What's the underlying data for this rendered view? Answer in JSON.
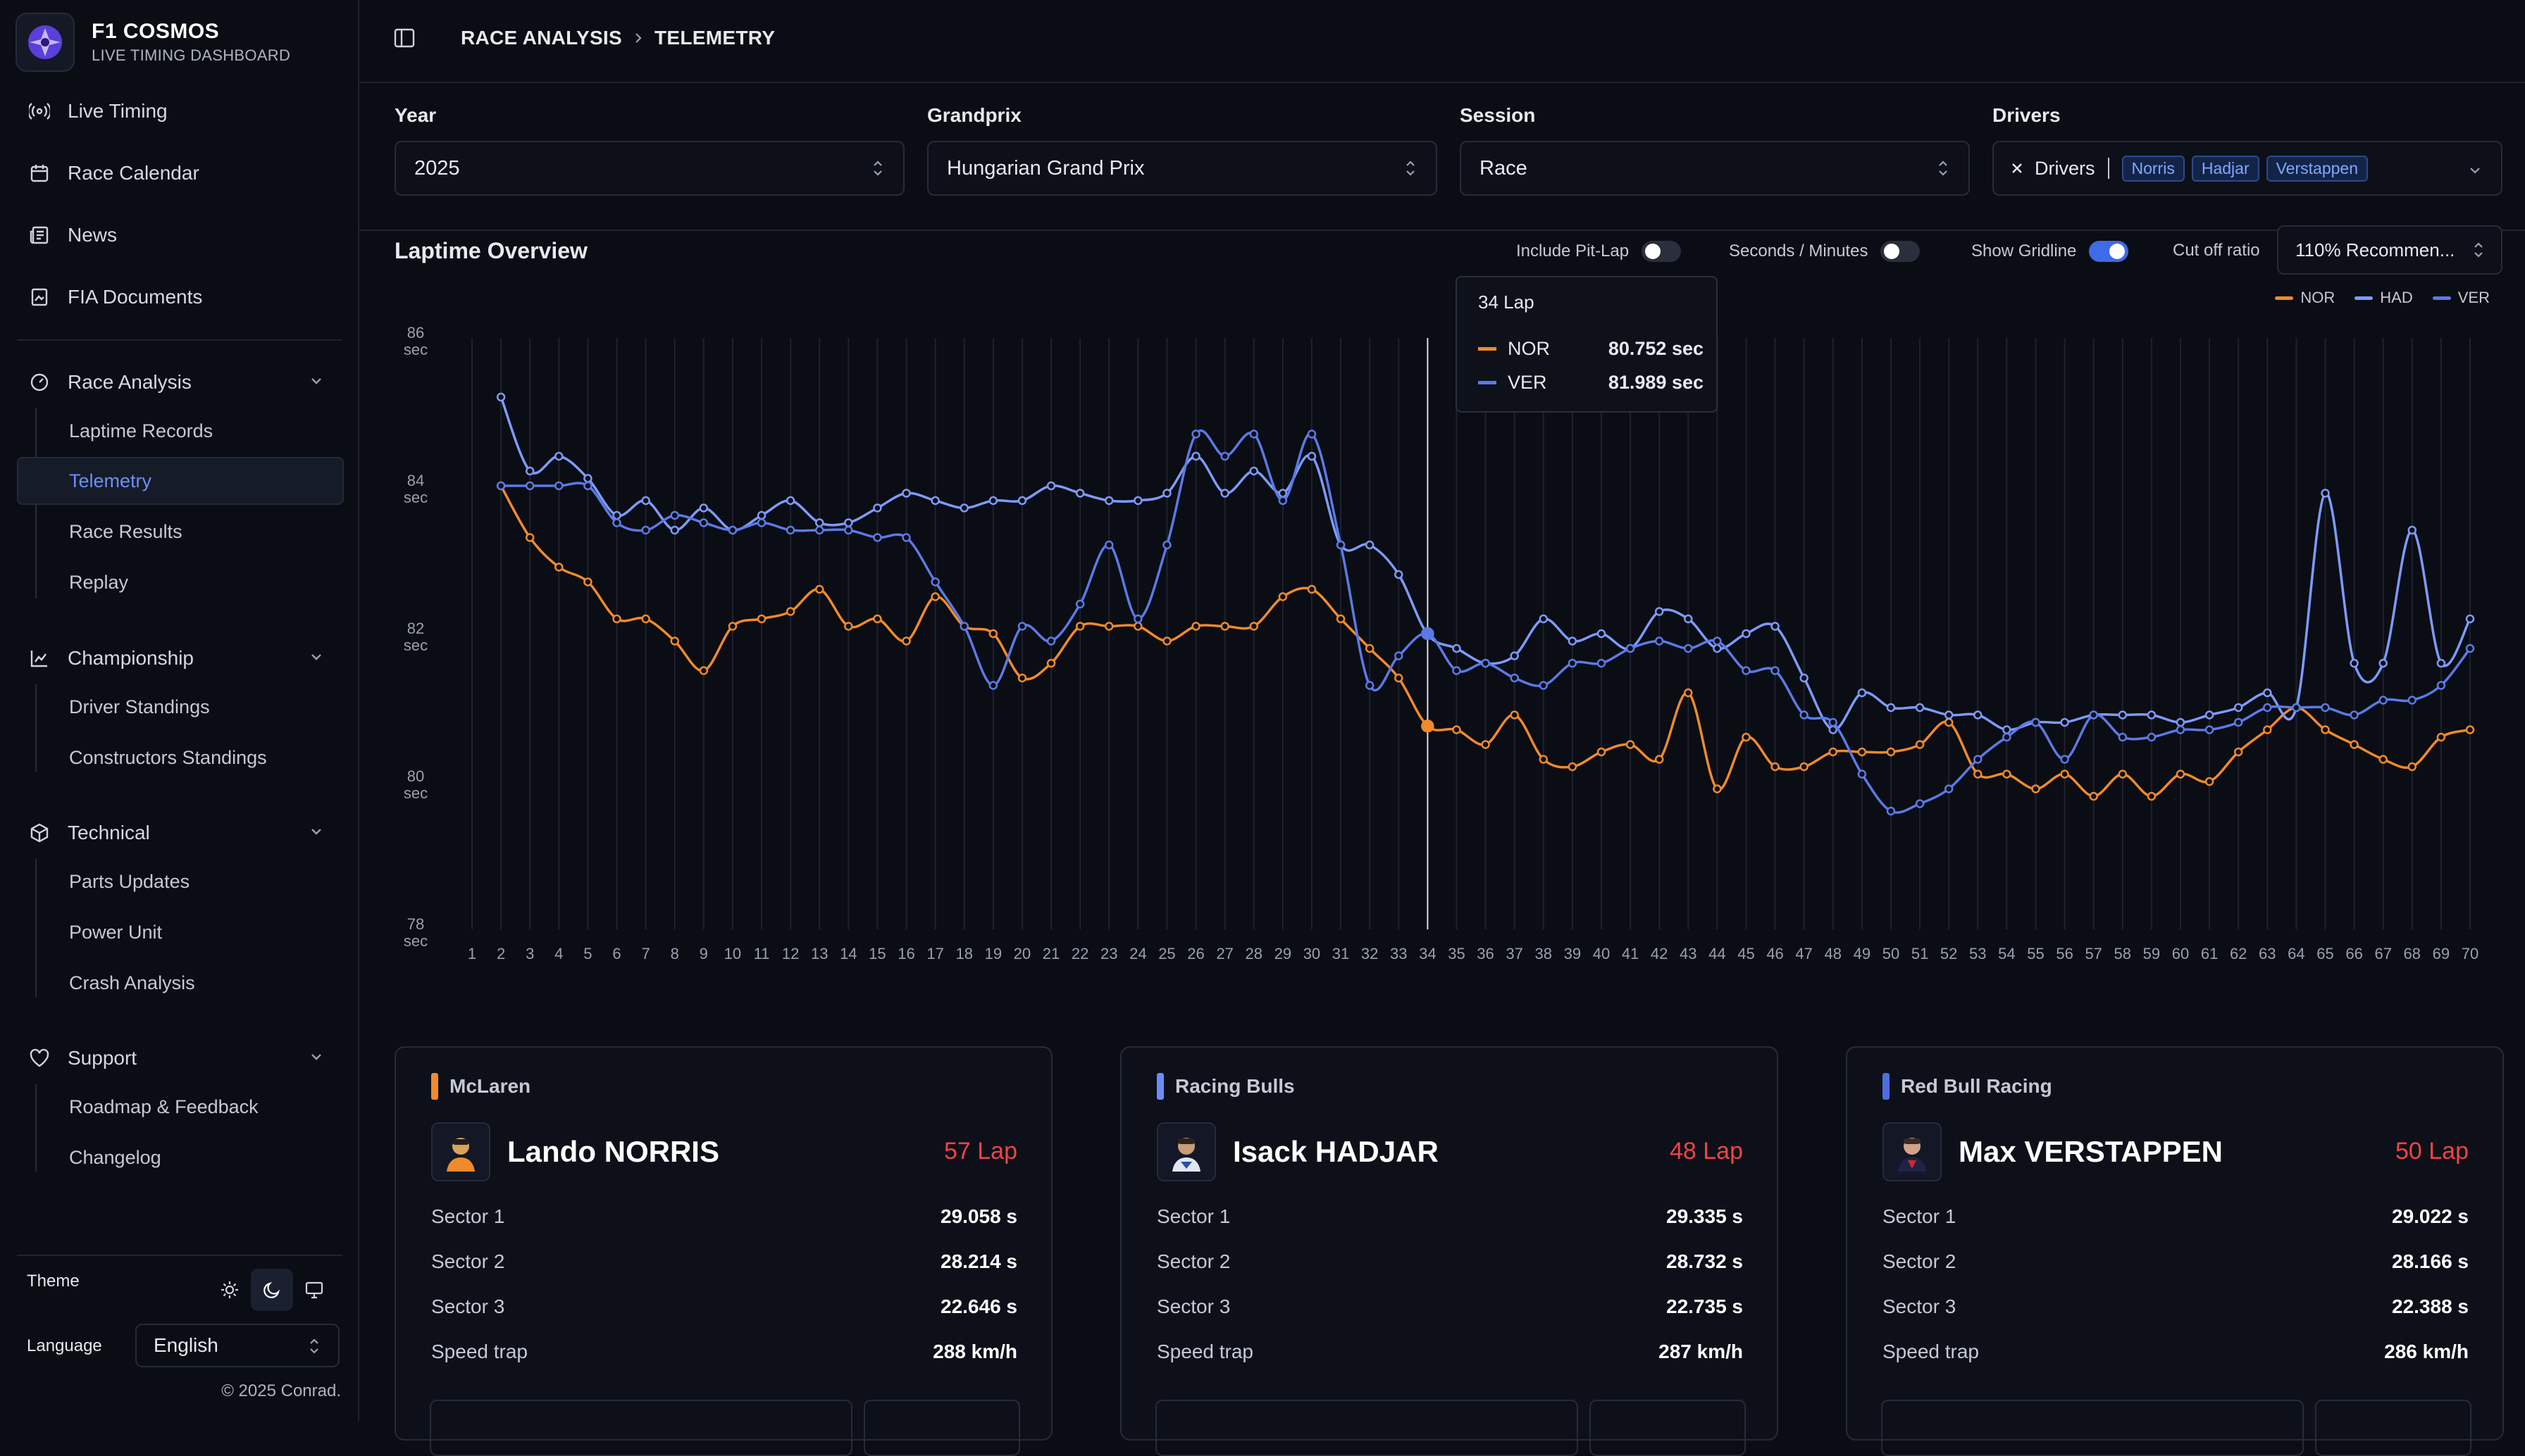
{
  "app": {
    "name": "F1 COSMOS",
    "subtitle": "LIVE TIMING DASHBOARD"
  },
  "sidebar": {
    "top_items": [
      {
        "label": "Live Timing",
        "icon": "broadcast-icon"
      },
      {
        "label": "Race Calendar",
        "icon": "calendar-icon"
      },
      {
        "label": "News",
        "icon": "newspaper-icon"
      },
      {
        "label": "FIA Documents",
        "icon": "document-icon"
      }
    ],
    "groups": [
      {
        "label": "Race Analysis",
        "icon": "gauge-icon",
        "items": [
          "Laptime Records",
          "Telemetry",
          "Race Results",
          "Replay"
        ]
      },
      {
        "label": "Championship",
        "icon": "chart-icon",
        "items": [
          "Driver Standings",
          "Constructors Standings"
        ]
      },
      {
        "label": "Technical",
        "icon": "package-icon",
        "items": [
          "Parts Updates",
          "Power Unit",
          "Crash Analysis"
        ]
      },
      {
        "label": "Support",
        "icon": "heart-icon",
        "items": [
          "Roadmap & Feedback",
          "Changelog"
        ]
      }
    ],
    "active_item": "Telemetry",
    "theme_label": "Theme",
    "language_label": "Language",
    "language_value": "English",
    "copyright": "© 2025 Conrad."
  },
  "breadcrumb": {
    "parent": "RACE ANALYSIS",
    "current": "TELEMETRY"
  },
  "filters": {
    "year": {
      "label": "Year",
      "value": "2025"
    },
    "grandprix": {
      "label": "Grandprix",
      "value": "Hungarian Grand Prix"
    },
    "session": {
      "label": "Session",
      "value": "Race"
    },
    "drivers": {
      "label": "Drivers",
      "value": "Drivers",
      "chips": [
        "Norris",
        "Hadjar",
        "Verstappen"
      ]
    }
  },
  "overview": {
    "title": "Laptime Overview",
    "include_pit_lap": {
      "label": "Include Pit-Lap",
      "on": false
    },
    "seconds_minutes": {
      "label": "Seconds / Minutes",
      "on": false
    },
    "show_gridline": {
      "label": "Show Gridline",
      "on": true
    },
    "cut_off": {
      "label": "Cut off ratio",
      "value": "110% Recommen..."
    }
  },
  "tooltip": {
    "title": "34 Lap",
    "rows": [
      {
        "name": "NOR",
        "value": "80.752 sec",
        "color": "#f08a2c"
      },
      {
        "name": "VER",
        "value": "81.989 sec",
        "color": "#5b7ae6"
      }
    ]
  },
  "chart_data": {
    "type": "line",
    "xlabel": "",
    "ylabel": "",
    "ylim": [
      78,
      86
    ],
    "yticks": [
      "86\nsec",
      "84\nsec",
      "82\nsec",
      "80\nsec",
      "78\nsec"
    ],
    "x": [
      1,
      2,
      3,
      4,
      5,
      6,
      7,
      8,
      9,
      10,
      11,
      12,
      13,
      14,
      15,
      16,
      17,
      18,
      19,
      20,
      21,
      22,
      23,
      24,
      25,
      26,
      27,
      28,
      29,
      30,
      31,
      32,
      33,
      34,
      35,
      36,
      37,
      38,
      39,
      40,
      41,
      42,
      43,
      44,
      45,
      46,
      47,
      48,
      49,
      50,
      51,
      52,
      53,
      54,
      55,
      56,
      57,
      58,
      59,
      60,
      61,
      62,
      63,
      64,
      65,
      66,
      67,
      68,
      69,
      70
    ],
    "grid": true,
    "legend": "top-right",
    "hover_lap": 34,
    "series": [
      {
        "name": "NOR",
        "color": "#f08a2c",
        "values": [
          null,
          84.0,
          83.3,
          82.9,
          82.7,
          82.2,
          82.2,
          81.9,
          81.5,
          82.1,
          82.2,
          82.3,
          82.6,
          82.1,
          82.2,
          81.9,
          82.5,
          82.1,
          82.0,
          81.4,
          81.6,
          82.1,
          82.1,
          82.1,
          81.9,
          82.1,
          82.1,
          82.1,
          82.5,
          82.6,
          82.2,
          81.8,
          81.4,
          80.75,
          80.7,
          80.5,
          80.9,
          80.3,
          80.2,
          80.4,
          80.5,
          80.3,
          81.2,
          79.9,
          80.6,
          80.2,
          80.2,
          80.4,
          80.4,
          80.4,
          80.5,
          80.8,
          80.1,
          80.1,
          79.9,
          80.1,
          79.8,
          80.1,
          79.8,
          80.1,
          80.0,
          80.4,
          80.7,
          81.0,
          80.7,
          80.5,
          80.3,
          80.2,
          80.6,
          80.7
        ]
      },
      {
        "name": "HAD",
        "color": "#7d9bff",
        "values": [
          null,
          85.2,
          84.2,
          84.4,
          84.1,
          83.6,
          83.8,
          83.4,
          83.7,
          83.4,
          83.6,
          83.8,
          83.5,
          83.5,
          83.7,
          83.9,
          83.8,
          83.7,
          83.8,
          83.8,
          84.0,
          83.9,
          83.8,
          83.8,
          83.9,
          84.4,
          83.9,
          84.2,
          83.9,
          84.4,
          83.2,
          83.2,
          82.8,
          81.99,
          81.8,
          81.6,
          81.7,
          82.2,
          81.9,
          82.0,
          81.8,
          82.3,
          82.2,
          81.8,
          82.0,
          82.1,
          81.4,
          80.7,
          81.2,
          81.0,
          81.0,
          80.9,
          80.9,
          80.7,
          80.8,
          80.8,
          80.9,
          80.9,
          80.9,
          80.8,
          80.9,
          81.0,
          81.2,
          81.0,
          83.9,
          81.6,
          81.6,
          83.4,
          81.6,
          82.2
        ]
      },
      {
        "name": "VER",
        "color": "#5b7ae6",
        "values": [
          null,
          84.0,
          84.0,
          84.0,
          84.0,
          83.5,
          83.4,
          83.6,
          83.5,
          83.4,
          83.5,
          83.4,
          83.4,
          83.4,
          83.3,
          83.3,
          82.7,
          82.1,
          81.3,
          82.1,
          81.9,
          82.4,
          83.2,
          82.2,
          83.2,
          84.7,
          84.4,
          84.7,
          83.8,
          84.7,
          83.2,
          81.3,
          81.7,
          82.0,
          81.5,
          81.6,
          81.4,
          81.3,
          81.6,
          81.6,
          81.8,
          81.9,
          81.8,
          81.9,
          81.5,
          81.5,
          80.9,
          80.8,
          80.1,
          79.6,
          79.7,
          79.9,
          80.3,
          80.6,
          80.8,
          80.3,
          80.9,
          80.6,
          80.6,
          80.7,
          80.7,
          80.8,
          81.0,
          81.0,
          81.0,
          80.9,
          81.1,
          81.1,
          81.3,
          81.8
        ]
      }
    ]
  },
  "cards": [
    {
      "team": "McLaren",
      "team_color": "#f08a2c",
      "driver": "Lando NORRIS",
      "lap": "57 Lap",
      "rows": [
        [
          "Sector 1",
          "29.058 s"
        ],
        [
          "Sector 2",
          "28.214 s"
        ],
        [
          "Sector 3",
          "22.646 s"
        ],
        [
          "Speed trap",
          "288 km/h"
        ]
      ]
    },
    {
      "team": "Racing Bulls",
      "team_color": "#6c8cf5",
      "driver": "Isack HADJAR",
      "lap": "48 Lap",
      "rows": [
        [
          "Sector 1",
          "29.335 s"
        ],
        [
          "Sector 2",
          "28.732 s"
        ],
        [
          "Sector 3",
          "22.735 s"
        ],
        [
          "Speed trap",
          "287 km/h"
        ]
      ]
    },
    {
      "team": "Red Bull Racing",
      "team_color": "#4f6fe0",
      "driver": "Max VERSTAPPEN",
      "lap": "50 Lap",
      "rows": [
        [
          "Sector 1",
          "29.022 s"
        ],
        [
          "Sector 2",
          "28.166 s"
        ],
        [
          "Sector 3",
          "22.388 s"
        ],
        [
          "Speed trap",
          "286 km/h"
        ]
      ]
    }
  ]
}
